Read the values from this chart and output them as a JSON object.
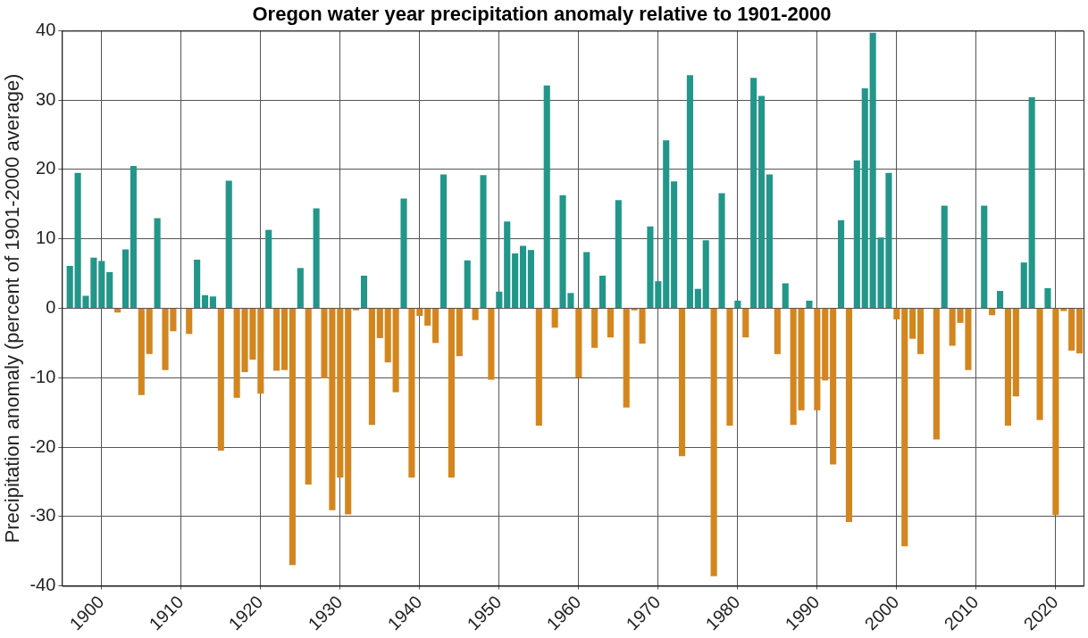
{
  "chart_data": {
    "type": "bar",
    "title": "Oregon water year precipitation anomaly relative to 1901-2000",
    "ylabel": "Precipitation anomaly (percent of 1901-2000 average)",
    "x": [
      1896,
      1897,
      1898,
      1899,
      1900,
      1901,
      1902,
      1903,
      1904,
      1905,
      1906,
      1907,
      1908,
      1909,
      1910,
      1911,
      1912,
      1913,
      1914,
      1915,
      1916,
      1917,
      1918,
      1919,
      1920,
      1921,
      1922,
      1923,
      1924,
      1925,
      1926,
      1927,
      1928,
      1929,
      1930,
      1931,
      1932,
      1933,
      1934,
      1935,
      1936,
      1937,
      1938,
      1939,
      1940,
      1941,
      1942,
      1943,
      1944,
      1945,
      1946,
      1947,
      1948,
      1949,
      1950,
      1951,
      1952,
      1953,
      1954,
      1955,
      1956,
      1957,
      1958,
      1959,
      1960,
      1961,
      1962,
      1963,
      1964,
      1965,
      1966,
      1967,
      1968,
      1969,
      1970,
      1971,
      1972,
      1973,
      1974,
      1975,
      1976,
      1977,
      1978,
      1979,
      1980,
      1981,
      1982,
      1983,
      1984,
      1985,
      1986,
      1987,
      1988,
      1989,
      1990,
      1991,
      1992,
      1993,
      1994,
      1995,
      1996,
      1997,
      1998,
      1999,
      2000,
      2001,
      2002,
      2003,
      2004,
      2005,
      2006,
      2007,
      2008,
      2009,
      2010,
      2011,
      2012,
      2013,
      2014,
      2015,
      2016,
      2017,
      2018,
      2019,
      2020,
      2021,
      2022,
      2023
    ],
    "values": [
      6.1,
      19.5,
      1.8,
      7.3,
      6.8,
      5.2,
      -0.6,
      8.5,
      20.5,
      -12.5,
      -6.6,
      13.0,
      -8.9,
      -3.3,
      0,
      -3.7,
      7.0,
      1.9,
      1.7,
      -20.5,
      18.4,
      -12.9,
      -9.2,
      -7.4,
      -12.3,
      11.3,
      -9.0,
      -8.9,
      -37.0,
      5.8,
      -25.4,
      14.4,
      -10.1,
      -29.1,
      -24.4,
      -29.7,
      -0.3,
      4.7,
      -16.8,
      -4.3,
      -7.8,
      -12.1,
      15.8,
      -24.4,
      -1.1,
      -2.5,
      -5.0,
      19.3,
      -24.4,
      -6.9,
      6.9,
      -1.7,
      19.2,
      -10.3,
      2.4,
      12.5,
      7.9,
      9.0,
      8.4,
      -16.9,
      32.1,
      -2.8,
      16.3,
      2.2,
      -10.0,
      8.1,
      -5.7,
      4.7,
      -4.2,
      15.6,
      -14.3,
      -0.3,
      -5.1,
      11.8,
      3.9,
      24.2,
      18.3,
      -21.3,
      33.6,
      2.8,
      9.8,
      -38.6,
      16.6,
      -16.9,
      1.1,
      -4.2,
      33.2,
      30.6,
      19.3,
      -6.6,
      3.6,
      -16.8,
      -14.7,
      1.1,
      -14.7,
      -10.4,
      -22.5,
      12.7,
      -30.8,
      21.3,
      31.7,
      39.7,
      10.2,
      19.5,
      -1.6,
      -34.3,
      -4.4,
      -6.6,
      0,
      -18.9,
      14.8,
      -5.4,
      -2.1,
      -8.9,
      0,
      14.8,
      -1.0,
      2.5,
      -16.9,
      -12.7,
      6.6,
      30.4,
      -16.1,
      2.9,
      -29.8,
      -0.4,
      -6.1,
      -6.5
    ],
    "colors": [
      "#23968a",
      "#23968a",
      "#23968a",
      "#23968a",
      "#23968a",
      "#23968a",
      "#d3861e",
      "#23968a",
      "#23968a",
      "#d3861e",
      "#d3861e",
      "#23968a",
      "#d3861e",
      "#d3861e",
      "#23968a",
      "#d3861e",
      "#23968a",
      "#23968a",
      "#23968a",
      "#d3861e",
      "#23968a",
      "#d3861e",
      "#d3861e",
      "#d3861e",
      "#d3861e",
      "#23968a",
      "#d3861e",
      "#d3861e",
      "#d3861e",
      "#23968a",
      "#d3861e",
      "#23968a",
      "#d3861e",
      "#d3861e",
      "#d3861e",
      "#d3861e",
      "#d3861e",
      "#23968a",
      "#d3861e",
      "#d3861e",
      "#d3861e",
      "#d3861e",
      "#23968a",
      "#d3861e",
      "#d3861e",
      "#d3861e",
      "#d3861e",
      "#23968a",
      "#d3861e",
      "#d3861e",
      "#23968a",
      "#d3861e",
      "#23968a",
      "#d3861e",
      "#23968a",
      "#23968a",
      "#23968a",
      "#23968a",
      "#23968a",
      "#d3861e",
      "#23968a",
      "#d3861e",
      "#23968a",
      "#23968a",
      "#d3861e",
      "#23968a",
      "#d3861e",
      "#23968a",
      "#d3861e",
      "#23968a",
      "#d3861e",
      "#d3861e",
      "#d3861e",
      "#23968a",
      "#23968a",
      "#23968a",
      "#23968a",
      "#d3861e",
      "#23968a",
      "#23968a",
      "#23968a",
      "#d3861e",
      "#23968a",
      "#d3861e",
      "#23968a",
      "#d3861e",
      "#23968a",
      "#23968a",
      "#23968a",
      "#d3861e",
      "#23968a",
      "#d3861e",
      "#d3861e",
      "#23968a",
      "#d3861e",
      "#d3861e",
      "#d3861e",
      "#23968a",
      "#d3861e",
      "#23968a",
      "#23968a",
      "#23968a",
      "#23968a",
      "#23968a",
      "#d3861e",
      "#d3861e",
      "#d3861e",
      "#d3861e",
      "#23968a",
      "#d3861e",
      "#23968a",
      "#d3861e",
      "#d3861e",
      "#d3861e",
      "#23968a",
      "#23968a",
      "#d3861e",
      "#23968a",
      "#d3861e",
      "#d3861e",
      "#23968a",
      "#23968a",
      "#d3861e",
      "#23968a",
      "#d3861e",
      "#d3861e",
      "#d3861e",
      "#d3861e"
    ],
    "xlim": [
      1895,
      2023.5
    ],
    "xticks": [
      1900,
      1910,
      1920,
      1930,
      1940,
      1950,
      1960,
      1970,
      1980,
      1990,
      2000,
      2010,
      2020
    ],
    "ylim": [
      -40,
      40
    ],
    "yticks": [
      -40,
      -30,
      -20,
      -10,
      0,
      10,
      20,
      30,
      40
    ],
    "grid": true
  }
}
